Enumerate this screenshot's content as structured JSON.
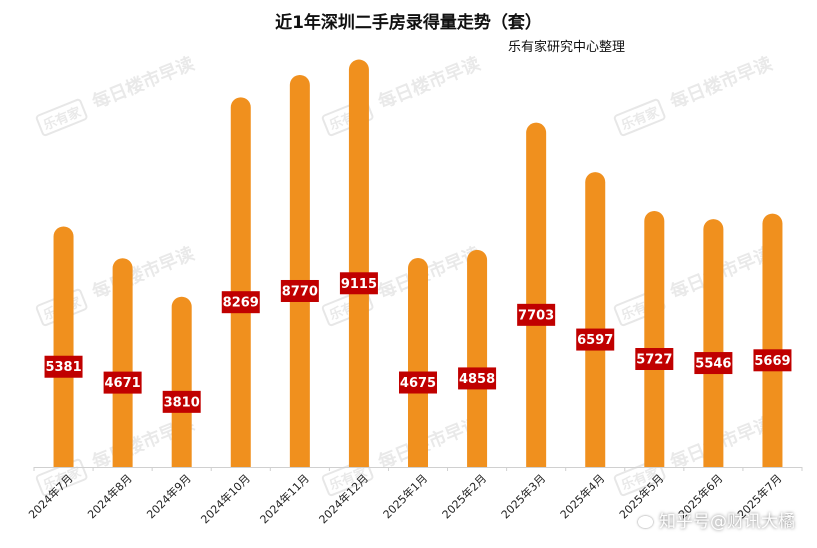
{
  "chart_data": {
    "type": "bar",
    "title": "近1年深圳二手房录得量走势（套）",
    "subtitle": "乐有家研究中心整理",
    "categories": [
      "2024年7月",
      "2024年8月",
      "2024年9月",
      "2024年10月",
      "2024年11月",
      "2024年12月",
      "2025年1月",
      "2025年2月",
      "2025年3月",
      "2025年4月",
      "2025年5月",
      "2025年6月",
      "2025年7月"
    ],
    "values": [
      5381,
      4671,
      3810,
      8269,
      8770,
      9115,
      4675,
      4858,
      7703,
      6597,
      5727,
      5546,
      5669
    ],
    "ylim": [
      0,
      10000
    ],
    "grid": false,
    "bar_color": "#F0901E",
    "label_bg": "#C00000",
    "label_color": "#FFFFFF"
  },
  "watermark": {
    "text": "每日楼市早读",
    "logo": "乐有家"
  },
  "corner_watermark": {
    "text": "知乎号@财讯大橘",
    "icon": "wechat-icon"
  }
}
